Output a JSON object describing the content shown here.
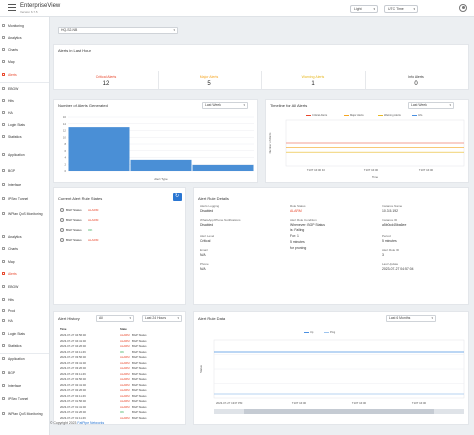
{
  "header": {
    "title": "EnterpriseView",
    "version": "Version 6.7.5",
    "theme": "Light",
    "timezone": "UTC Time"
  },
  "sidebar": {
    "items": [
      {
        "label": "Monitoring",
        "active": false
      },
      {
        "label": "Analytics",
        "active": false
      },
      {
        "label": "Charts",
        "active": false
      },
      {
        "label": "Map",
        "active": false
      },
      {
        "label": "Alerts",
        "active": true
      },
      {
        "label": "EBGW",
        "active": false
      },
      {
        "label": "Hits",
        "active": false
      },
      {
        "label": "HA",
        "active": false
      },
      {
        "label": "Login Stats",
        "active": false
      },
      {
        "label": "Statistics",
        "active": false
      },
      {
        "label": "Application",
        "active": false
      },
      {
        "label": "BGP",
        "active": false
      },
      {
        "label": "Interface",
        "active": false
      },
      {
        "label": "IPSec Tunnel",
        "active": false
      },
      {
        "label": "WPlan QoS Monitoring",
        "active": false
      },
      {
        "label": "Analytics",
        "active": false
      },
      {
        "label": "Charts",
        "active": false
      },
      {
        "label": "Map",
        "active": false
      },
      {
        "label": "Alerts",
        "active": true
      },
      {
        "label": "EBGW",
        "active": false
      },
      {
        "label": "Hits",
        "active": false
      },
      {
        "label": "Prod",
        "active": false
      },
      {
        "label": "HA",
        "active": false
      },
      {
        "label": "Login Stats",
        "active": false
      },
      {
        "label": "Statistics",
        "active": false
      },
      {
        "label": "Application",
        "active": false
      },
      {
        "label": "BGP",
        "active": false
      },
      {
        "label": "Interface",
        "active": false
      },
      {
        "label": "IPSec Tunnel",
        "active": false
      },
      {
        "label": "WPlan QoS Monitoring",
        "active": false
      }
    ]
  },
  "device_select": {
    "value": "HQ-S2-NB"
  },
  "summary": {
    "title": "Alerts in Last Hour",
    "items": [
      {
        "label": "Critical Alerts",
        "value": "12",
        "color": "#e8472c"
      },
      {
        "label": "Major Alerts",
        "value": "5",
        "color": "#f5a623"
      },
      {
        "label": "Warning Alerts",
        "value": "1",
        "color": "#e8b923"
      },
      {
        "label": "Info Alerts",
        "value": "0",
        "color": "#333333"
      }
    ]
  },
  "num_alerts": {
    "title": "Number of Alerts Generated",
    "range": "Last Week"
  },
  "timeline": {
    "title": "Timeline for All Alerts",
    "range": "Last Week",
    "legend": [
      {
        "label": "Critical Alerts",
        "color": "#e8472c"
      },
      {
        "label": "Major Alerts",
        "color": "#f5a623"
      },
      {
        "label": "Warning Alerts",
        "color": "#e8b923"
      },
      {
        "label": "Info",
        "color": "#4a90e2"
      }
    ]
  },
  "current_rules": {
    "title": "Current Alert Rule States",
    "rows": [
      {
        "name": "BGP Status",
        "state": "ALARM"
      },
      {
        "name": "BGP Status",
        "state": "ALARM"
      },
      {
        "name": "BGP Status",
        "state": "OK"
      },
      {
        "name": "BGP Status",
        "state": "ALARM"
      }
    ]
  },
  "rule_details": {
    "title": "Alert Rule Details",
    "fields": [
      {
        "label": "Alerts Logging",
        "value": "Disabled"
      },
      {
        "label": "Rule Status",
        "value": "ALARM"
      },
      {
        "label": "Instance Name",
        "value": "10.3.5.192"
      },
      {
        "label": "WhatsApp/Phone Notifications",
        "value": "Disabled"
      },
      {
        "label": "Alert Rule Condition",
        "value": "Whenever: BGP Status"
      },
      {
        "label": "",
        "value": "is: Failing"
      },
      {
        "label": "",
        "value": "For: 1"
      },
      {
        "label": "",
        "value": "5 minutes"
      },
      {
        "label": "",
        "value": "for pruning"
      },
      {
        "label": "Instance ID",
        "value": "a5b0cd45ba6ee"
      },
      {
        "label": "Alert Level",
        "value": "Critical"
      },
      {
        "label": "Email",
        "value": "N/A"
      },
      {
        "label": "Period",
        "value": "5 minutes"
      },
      {
        "label": "Phone",
        "value": "N/A"
      },
      {
        "label": "Alert Rule ID",
        "value": "3"
      },
      {
        "label": "Last Update",
        "value": "2023-07-27 04:57:04"
      }
    ]
  },
  "history": {
    "title": "Alert History",
    "filter": "All",
    "range": "Last 24 Hours",
    "columns": [
      "Time",
      "State"
    ],
    "rows": [
      [
        "2023-07-27 04:56:46",
        "ALARM",
        "BGP Status"
      ],
      [
        "2023-07-27 04:41:46",
        "ALARM",
        "BGP Status"
      ],
      [
        "2023-07-27 04:26:46",
        "ALARM",
        "BGP Status"
      ],
      [
        "2023-07-27 04:11:46",
        "OK",
        "BGP Status"
      ],
      [
        "2023-07-27 03:56:46",
        "ALARM",
        "BGP Status"
      ],
      [
        "2023-07-27 03:41:46",
        "ALARM",
        "BGP Status"
      ],
      [
        "2023-07-27 03:26:46",
        "ALARM",
        "BGP Status"
      ],
      [
        "2023-07-27 03:11:46",
        "ALARM",
        "BGP Status"
      ],
      [
        "2023-07-27 02:56:46",
        "ALARM",
        "BGP Status"
      ],
      [
        "2023-07-27 02:41:46",
        "ALARM",
        "BGP Status"
      ],
      [
        "2023-07-27 02:26:46",
        "ALARM",
        "BGP Status"
      ],
      [
        "2023-07-27 02:11:46",
        "ALARM",
        "BGP Status"
      ],
      [
        "2023-07-27 01:56:46",
        "ALARM",
        "BGP Status"
      ],
      [
        "2023-07-27 01:41:46",
        "ALARM",
        "BGP Status"
      ],
      [
        "2023-07-27 01:26:46",
        "OK",
        "BGP Status"
      ],
      [
        "2023-07-27 01:11:46",
        "ALARM",
        "BGP Status"
      ]
    ]
  },
  "rule_data": {
    "title": "Alert Rule Data",
    "range": "Last 6 Months"
  },
  "footer": {
    "copyright": "© Copyright 2023 ",
    "company": "FatPipe Networks"
  },
  "chart_data": [
    {
      "type": "bar",
      "title": "Number of Alerts Generated",
      "xlabel": "Alert Type",
      "categories": [
        "",
        "",
        ""
      ],
      "values": [
        13,
        3.3,
        1.8
      ],
      "ylim": [
        0,
        16
      ],
      "yticks": [
        0,
        2,
        4,
        6,
        8,
        10,
        12,
        14,
        16
      ],
      "color": "#4a8fd6"
    },
    {
      "type": "line",
      "title": "Timeline for All Alerts",
      "xlabel": "Time",
      "ylabel": "Number of Alerts",
      "xticks": [
        "T10T 16:00 Fri",
        "T10T 16:00",
        "T10T 16:00"
      ],
      "series": [
        {
          "name": "Critical Alerts",
          "color": "#e8472c",
          "values": [
            0.5,
            0.5,
            0.5
          ]
        },
        {
          "name": "Major Alerts",
          "color": "#f5a623",
          "values": [
            0.4,
            0.4,
            0.4
          ]
        },
        {
          "name": "Warning Alerts",
          "color": "#e8b923",
          "values": [
            0.3,
            0.3,
            0.3
          ]
        }
      ]
    },
    {
      "type": "line",
      "title": "Alert Rule Data",
      "ylabel": "Status",
      "xticks": [
        "2023-07-27 1337 PM",
        "T10T 16:00",
        "T10T 16:00",
        "T10T 16:00"
      ],
      "series": [
        {
          "name": "Up",
          "color": "#4a90e2",
          "values": [
            1,
            1,
            1,
            1
          ]
        },
        {
          "name": "Ping",
          "color": "#9fc5ee",
          "values": [
            0,
            0,
            0,
            0
          ]
        }
      ]
    }
  ]
}
